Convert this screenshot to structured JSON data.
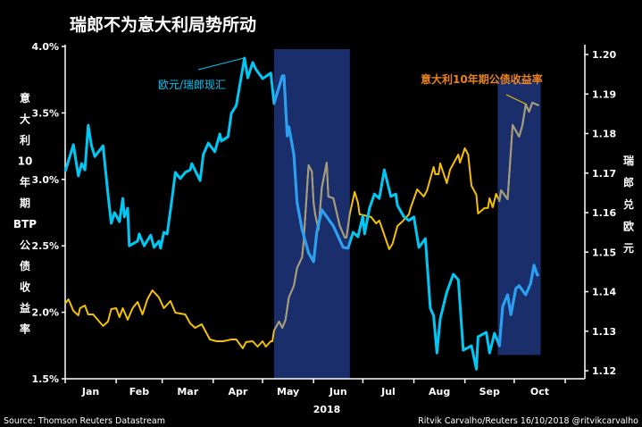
{
  "chart_data": {
    "type": "line",
    "title": "瑞郎不为意大利局势所动",
    "xlabel": "2018",
    "x_unit": "day of year 2018 (0 = Jan 1)",
    "x_range": [
      0,
      304
    ],
    "months": [
      "Jan",
      "Feb",
      "Mar",
      "Apr",
      "May",
      "Jun",
      "Jul",
      "Aug",
      "Sep",
      "Oct"
    ],
    "month_start_days": [
      0,
      31,
      59,
      90,
      120,
      151,
      181,
      212,
      243,
      273,
      304
    ],
    "left_axis": {
      "label_chars": [
        "意",
        "大",
        "利",
        "10",
        "年",
        "期",
        "BTP",
        "公",
        "债",
        "收",
        "益",
        "率"
      ],
      "range": [
        1.5,
        4.0
      ],
      "ticks": [
        "1.5%",
        "2.0%",
        "2.5%",
        "3.0%",
        "3.5%",
        "4.0%"
      ],
      "tick_values": [
        1.5,
        2.0,
        2.5,
        3.0,
        3.5,
        4.0
      ]
    },
    "right_axis": {
      "label_chars": [
        "瑞",
        "郎",
        "兑",
        "欧",
        "元"
      ],
      "range": [
        1.12,
        1.2
      ],
      "ticks": [
        "1.12",
        "1.13",
        "1.14",
        "1.15",
        "1.16",
        "1.17",
        "1.18",
        "1.19",
        "1.20"
      ],
      "tick_values": [
        1.12,
        1.13,
        1.14,
        1.15,
        1.16,
        1.17,
        1.18,
        1.19,
        1.2
      ]
    },
    "highlights": [
      {
        "start_day": 127,
        "end_day": 172,
        "low": 1.5,
        "high": 4.0
      },
      {
        "start_day": 263,
        "end_day": 288,
        "low": 1.5,
        "high": 3.6
      }
    ],
    "series": [
      {
        "name": "欧元/瑞郎现汇",
        "axis": "right",
        "color": "#00c8f5",
        "highlight_color": "#2e9ff0",
        "points": [
          [
            0,
            1.1704
          ],
          [
            5,
            1.1772
          ],
          [
            8,
            1.1693
          ],
          [
            10,
            1.1724
          ],
          [
            12,
            1.1708
          ],
          [
            14,
            1.1821
          ],
          [
            16,
            1.1769
          ],
          [
            18,
            1.1742
          ],
          [
            23,
            1.1769
          ],
          [
            26,
            1.1647
          ],
          [
            28,
            1.1573
          ],
          [
            30,
            1.16
          ],
          [
            33,
            1.1577
          ],
          [
            35,
            1.1636
          ],
          [
            36,
            1.1589
          ],
          [
            38,
            1.1611
          ],
          [
            39,
            1.1516
          ],
          [
            44,
            1.1528
          ],
          [
            45,
            1.1546
          ],
          [
            48,
            1.1516
          ],
          [
            52,
            1.1543
          ],
          [
            54,
            1.1512
          ],
          [
            57,
            1.1528
          ],
          [
            58,
            1.151
          ],
          [
            60,
            1.155
          ],
          [
            62,
            1.1546
          ],
          [
            65,
            1.1636
          ],
          [
            67,
            1.1702
          ],
          [
            70,
            1.1686
          ],
          [
            73,
            1.1702
          ],
          [
            76,
            1.1708
          ],
          [
            77,
            1.1724
          ],
          [
            82,
            1.1681
          ],
          [
            84,
            1.1747
          ],
          [
            87,
            1.1776
          ],
          [
            91,
            1.1754
          ],
          [
            94,
            1.1799
          ],
          [
            95,
            1.1781
          ],
          [
            99,
            1.1792
          ],
          [
            101,
            1.1851
          ],
          [
            104,
            1.1871
          ],
          [
            109,
            1.1991
          ],
          [
            111,
            1.1941
          ],
          [
            114,
            1.198
          ],
          [
            116,
            1.1962
          ],
          [
            120,
            1.1939
          ],
          [
            125,
            1.1953
          ],
          [
            127,
            1.1876
          ],
          [
            132,
            1.1946
          ],
          [
            133,
            1.1946
          ],
          [
            135,
            1.1794
          ],
          [
            136,
            1.1817
          ],
          [
            139,
            1.1747
          ],
          [
            141,
            1.1625
          ],
          [
            144,
            1.1557
          ],
          [
            148,
            1.1498
          ],
          [
            151,
            1.1476
          ],
          [
            153,
            1.155
          ],
          [
            156,
            1.1607
          ],
          [
            163,
            1.1566
          ],
          [
            169,
            1.1512
          ],
          [
            172,
            1.151
          ],
          [
            175,
            1.155
          ],
          [
            178,
            1.1539
          ],
          [
            181,
            1.1591
          ],
          [
            182,
            1.1546
          ],
          [
            185,
            1.1611
          ],
          [
            188,
            1.1647
          ],
          [
            191,
            1.1636
          ],
          [
            194,
            1.1708
          ],
          [
            198,
            1.1641
          ],
          [
            201,
            1.1647
          ],
          [
            202,
            1.1618
          ],
          [
            206,
            1.1589
          ],
          [
            209,
            1.158
          ],
          [
            212,
            1.1589
          ],
          [
            215,
            1.1512
          ],
          [
            219,
            1.1534
          ],
          [
            222,
            1.1358
          ],
          [
            224,
            1.134
          ],
          [
            226,
            1.1245
          ],
          [
            228,
            1.1331
          ],
          [
            232,
            1.1399
          ],
          [
            236,
            1.1444
          ],
          [
            239,
            1.143
          ],
          [
            242,
            1.1252
          ],
          [
            247,
            1.1263
          ],
          [
            250,
            1.1204
          ],
          [
            251,
            1.1286
          ],
          [
            256,
            1.1297
          ],
          [
            258,
            1.1245
          ],
          [
            261,
            1.1295
          ],
          [
            264,
            1.1263
          ],
          [
            266,
            1.1363
          ],
          [
            269,
            1.1392
          ],
          [
            271,
            1.1342
          ],
          [
            274,
            1.1408
          ],
          [
            276,
            1.1415
          ],
          [
            280,
            1.1392
          ],
          [
            283,
            1.1421
          ],
          [
            285,
            1.1467
          ],
          [
            287,
            1.1442
          ],
          [
            288,
            1.1444
          ]
        ]
      },
      {
        "name": "意大利10年期公债收益率",
        "axis": "left",
        "color": "#f5c000",
        "label_color": "#e8821e",
        "highlight_color": "#a39c82",
        "points": [
          [
            0,
            2.065
          ],
          [
            2,
            2.098
          ],
          [
            5,
            2.011
          ],
          [
            8,
            1.977
          ],
          [
            9,
            2.031
          ],
          [
            12,
            2.051
          ],
          [
            14,
            1.984
          ],
          [
            17,
            1.984
          ],
          [
            23,
            1.897
          ],
          [
            26,
            1.93
          ],
          [
            28,
            2.024
          ],
          [
            31,
            2.031
          ],
          [
            33,
            1.964
          ],
          [
            35,
            2.031
          ],
          [
            38,
            1.944
          ],
          [
            41,
            2.031
          ],
          [
            44,
            2.078
          ],
          [
            47,
            1.984
          ],
          [
            50,
            2.098
          ],
          [
            53,
            2.165
          ],
          [
            57,
            2.112
          ],
          [
            60,
            2.031
          ],
          [
            64,
            2.085
          ],
          [
            67,
            1.997
          ],
          [
            73,
            1.984
          ],
          [
            76,
            1.917
          ],
          [
            79,
            1.883
          ],
          [
            83,
            1.91
          ],
          [
            88,
            1.796
          ],
          [
            92,
            1.782
          ],
          [
            96,
            1.782
          ],
          [
            101,
            1.796
          ],
          [
            104,
            1.796
          ],
          [
            108,
            1.729
          ],
          [
            110,
            1.776
          ],
          [
            114,
            1.782
          ],
          [
            117,
            1.742
          ],
          [
            120,
            1.782
          ],
          [
            122,
            1.742
          ],
          [
            125,
            1.782
          ],
          [
            126,
            1.782
          ],
          [
            127,
            1.863
          ],
          [
            130,
            1.93
          ],
          [
            132,
            1.883
          ],
          [
            134,
            1.944
          ],
          [
            136,
            2.112
          ],
          [
            139,
            2.199
          ],
          [
            141,
            2.334
          ],
          [
            144,
            2.414
          ],
          [
            145,
            2.535
          ],
          [
            148,
            3.106
          ],
          [
            150,
            3.059
          ],
          [
            151,
            2.824
          ],
          [
            152,
            2.737
          ],
          [
            154,
            2.622
          ],
          [
            156,
            2.938
          ],
          [
            159,
            3.126
          ],
          [
            160,
            2.871
          ],
          [
            163,
            2.858
          ],
          [
            167,
            2.649
          ],
          [
            170,
            2.562
          ],
          [
            171,
            2.562
          ],
          [
            173,
            2.737
          ],
          [
            176,
            2.905
          ],
          [
            178,
            2.824
          ],
          [
            179,
            2.737
          ],
          [
            186,
            2.717
          ],
          [
            189,
            2.669
          ],
          [
            191,
            2.69
          ],
          [
            194,
            2.582
          ],
          [
            197,
            2.475
          ],
          [
            199,
            2.515
          ],
          [
            202,
            2.649
          ],
          [
            205,
            2.683
          ],
          [
            209,
            2.737
          ],
          [
            210,
            2.784
          ],
          [
            214,
            2.925
          ],
          [
            218,
            2.871
          ],
          [
            220,
            2.918
          ],
          [
            224,
            3.093
          ],
          [
            225,
            3.039
          ],
          [
            227,
            3.039
          ],
          [
            228,
            3.12
          ],
          [
            232,
            2.972
          ],
          [
            234,
            3.073
          ],
          [
            239,
            3.187
          ],
          [
            240,
            3.126
          ],
          [
            243,
            3.234
          ],
          [
            245,
            3.187
          ],
          [
            247,
            2.952
          ],
          [
            250,
            2.884
          ],
          [
            251,
            2.743
          ],
          [
            255,
            2.784
          ],
          [
            257,
            2.784
          ],
          [
            258,
            2.858
          ],
          [
            260,
            2.79
          ],
          [
            262,
            2.891
          ],
          [
            264,
            2.837
          ],
          [
            265,
            2.918
          ],
          [
            269,
            2.851
          ],
          [
            272,
            3.409
          ],
          [
            276,
            3.321
          ],
          [
            278,
            3.409
          ],
          [
            280,
            3.563
          ],
          [
            282,
            3.509
          ],
          [
            284,
            3.577
          ],
          [
            288,
            3.556
          ]
        ]
      }
    ],
    "highlight_fill": "#1a2e6c"
  },
  "footer": {
    "source": "Source: Thomson Reuters Datastream",
    "credit": "Ritvik Carvalho/Reuters 16/10/2018 @ritvikcarvalho"
  }
}
